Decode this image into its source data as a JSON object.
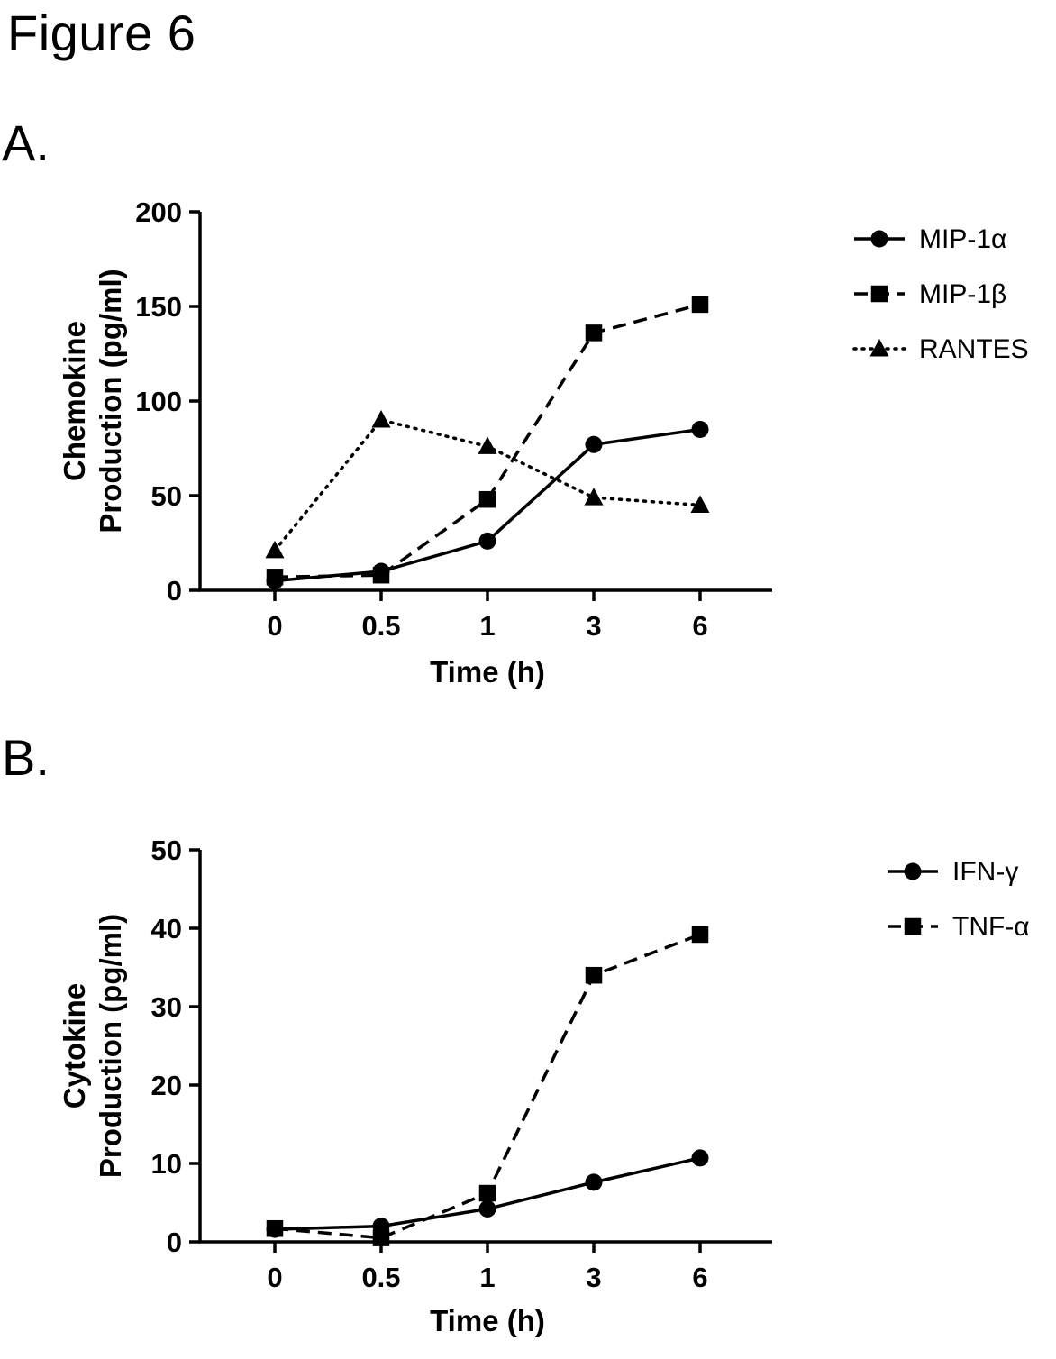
{
  "page": {
    "title": "Figure 6",
    "panel_a_label": "A.",
    "panel_b_label": "B."
  },
  "colors": {
    "foreground": "#000000",
    "background": "#ffffff"
  },
  "chart_data": [
    {
      "id": "panel_a",
      "type": "line",
      "title": "",
      "xlabel": "Time (h)",
      "ylabel_lines": [
        "Chemokine",
        "Production (pg/ml)"
      ],
      "categories": [
        "0",
        "0.5",
        "1",
        "3",
        "6"
      ],
      "ylim": [
        0,
        200
      ],
      "yticks": [
        0,
        50,
        100,
        150,
        200
      ],
      "grid": false,
      "legend_position": "right",
      "series": [
        {
          "name": "MIP-1α",
          "marker": "circle",
          "line": "solid",
          "values": [
            5,
            10,
            26,
            77,
            85
          ]
        },
        {
          "name": "MIP-1β",
          "marker": "square",
          "line": "dashed",
          "values": [
            7,
            8,
            48,
            136,
            151
          ]
        },
        {
          "name": "RANTES",
          "marker": "triangle",
          "line": "dotted",
          "values": [
            21,
            90,
            76,
            49,
            45
          ]
        }
      ]
    },
    {
      "id": "panel_b",
      "type": "line",
      "title": "",
      "xlabel": "Time (h)",
      "ylabel_lines": [
        "Cytokine",
        "Production (pg/ml)"
      ],
      "categories": [
        "0",
        "0.5",
        "1",
        "3",
        "6"
      ],
      "ylim": [
        0,
        50
      ],
      "yticks": [
        0,
        10,
        20,
        30,
        40,
        50
      ],
      "grid": false,
      "legend_position": "right",
      "series": [
        {
          "name": "IFN-γ",
          "marker": "circle",
          "line": "solid",
          "values": [
            1.6,
            2.0,
            4.2,
            7.6,
            10.7
          ]
        },
        {
          "name": "TNF-α",
          "marker": "square",
          "line": "dashed",
          "values": [
            1.7,
            0.5,
            6.2,
            34.0,
            39.2
          ]
        }
      ]
    }
  ]
}
